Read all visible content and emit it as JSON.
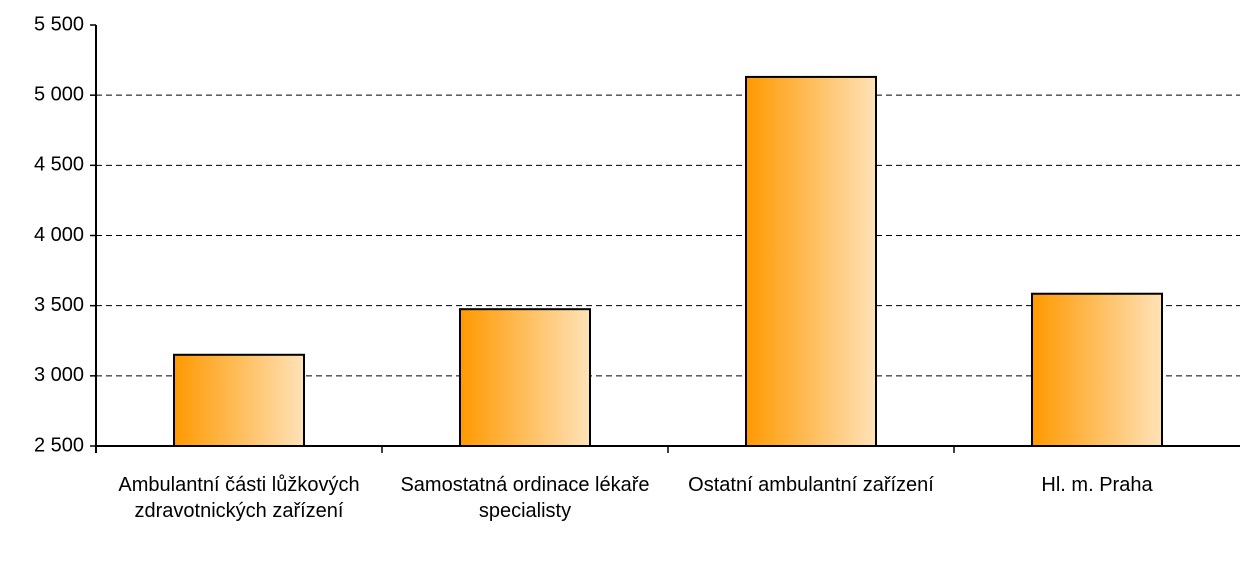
{
  "chart_data": {
    "type": "bar",
    "categories": [
      "Ambulantní části lůžkových zdravotnických zařízení",
      "Samostatná ordinace lékaře specialisty",
      "Ostatní ambulantní zařízení",
      "Hl. m. Praha"
    ],
    "values": [
      3150,
      3475,
      5130,
      3585
    ],
    "color": "#ff9900",
    "ylim": [
      2500,
      5500
    ],
    "yticks": [
      {
        "value": 2500,
        "label": "2 500"
      },
      {
        "value": 3000,
        "label": "3 000"
      },
      {
        "value": 3500,
        "label": "3 500"
      },
      {
        "value": 4000,
        "label": "4 000"
      },
      {
        "value": 4500,
        "label": "4 500"
      },
      {
        "value": 5000,
        "label": "5 000"
      },
      {
        "value": 5500,
        "label": "5 500"
      }
    ],
    "grid": true
  }
}
